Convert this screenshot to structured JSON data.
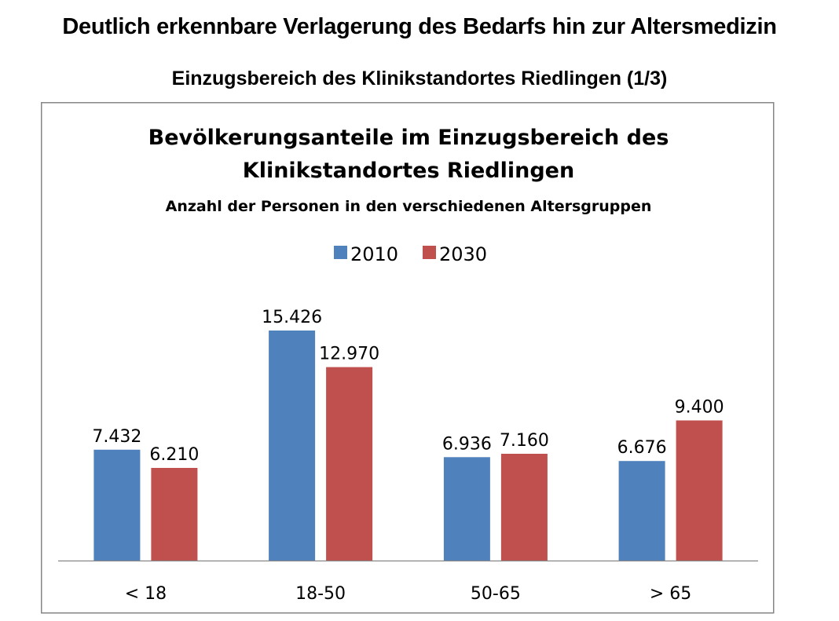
{
  "slide": {
    "headline": "Deutlich erkennbare Verlagerung des Bedarfs hin zur Altersmedizin",
    "subheadline": "Einzugsbereich des Klinikstandortes Riedlingen (1/3)"
  },
  "chart_data": {
    "type": "bar",
    "title_line1": "Bevölkerungsanteile im Einzugsbereich des",
    "title_line2": "Klinikstandortes Riedlingen",
    "subtitle": "Anzahl der Personen in den verschiedenen Altersgruppen",
    "xlabel": "",
    "ylabel": "",
    "categories": [
      "< 18",
      "18-50",
      "50-65",
      "> 65"
    ],
    "series": [
      {
        "name": "2010",
        "color": "#4F81BD",
        "values": [
          7432,
          15426,
          6936,
          6676
        ],
        "labels": [
          "7.432",
          "15.426",
          "6.936",
          "6.676"
        ]
      },
      {
        "name": "2030",
        "color": "#C0504D",
        "values": [
          6210,
          12970,
          7160,
          9400
        ],
        "labels": [
          "6.210",
          "12.970",
          "7.160",
          "9.400"
        ]
      }
    ],
    "ylim": [
      0,
      15426
    ],
    "grid": false,
    "legend_position": "top"
  }
}
